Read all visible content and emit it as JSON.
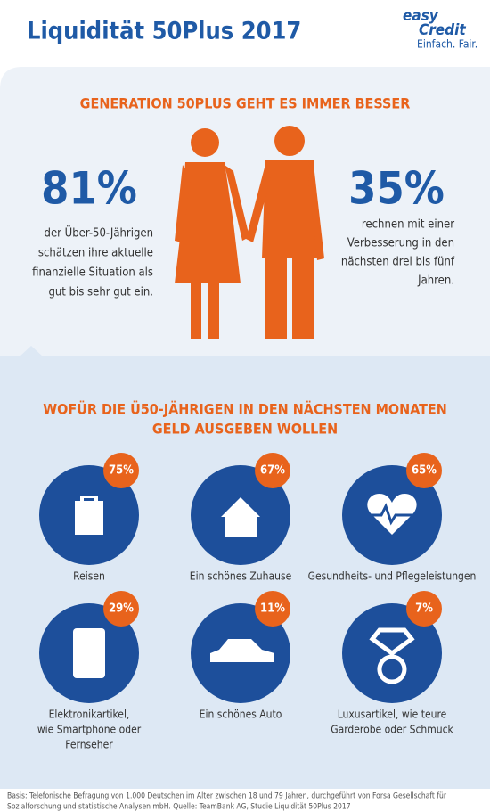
{
  "header": {
    "title": "Liquidität 50Plus 2017",
    "logo": {
      "brand_a": "easy",
      "brand_b": "Credit",
      "tagline": "Einfach. Fair."
    }
  },
  "section1": {
    "heading": "GENERATION 50PLUS GEHT ES IMMER BESSER",
    "left": {
      "value": "81%",
      "lines": [
        "der Über-50-Jährigen",
        "schätzen ihre aktuelle",
        "finanzielle Situation als",
        "gut bis sehr gut ein."
      ]
    },
    "right": {
      "value": "35%",
      "lines": [
        "rechnen mit einer",
        "Verbesserung in den",
        "nächsten drei bis fünf",
        "Jahren."
      ]
    }
  },
  "section2": {
    "heading": [
      "WOFÜR DIE Ü50-JÄHRIGEN IN DEN NÄCHSTEN MONATEN",
      "GELD AUSGEBEN WOLLEN"
    ],
    "items": [
      {
        "value": "75%",
        "lines": [
          "Reisen"
        ]
      },
      {
        "value": "67%",
        "lines": [
          "Ein schönes Zuhause"
        ]
      },
      {
        "value": "65%",
        "lines": [
          "Gesundheits- und Pflegeleistungen"
        ]
      },
      {
        "value": "29%",
        "lines": [
          "Elektronikartikel,",
          "wie Smartphone oder",
          "Fernseher"
        ]
      },
      {
        "value": "11%",
        "lines": [
          "Ein schönes Auto"
        ]
      },
      {
        "value": "7%",
        "lines": [
          "Luxusartikel, wie teure",
          "Garderobe oder Schmuck"
        ]
      }
    ]
  },
  "footer": [
    "Basis: Telefonische Befragung von 1.000 Deutschen im Alter zwischen 18 und 79 Jahren, durchgeführt von Forsa Gesellschaft für",
    "Sozialforschung und statistische Analysen mbH. Quelle: TeamBank AG, Studie Liquidität 50Plus 2017"
  ]
}
